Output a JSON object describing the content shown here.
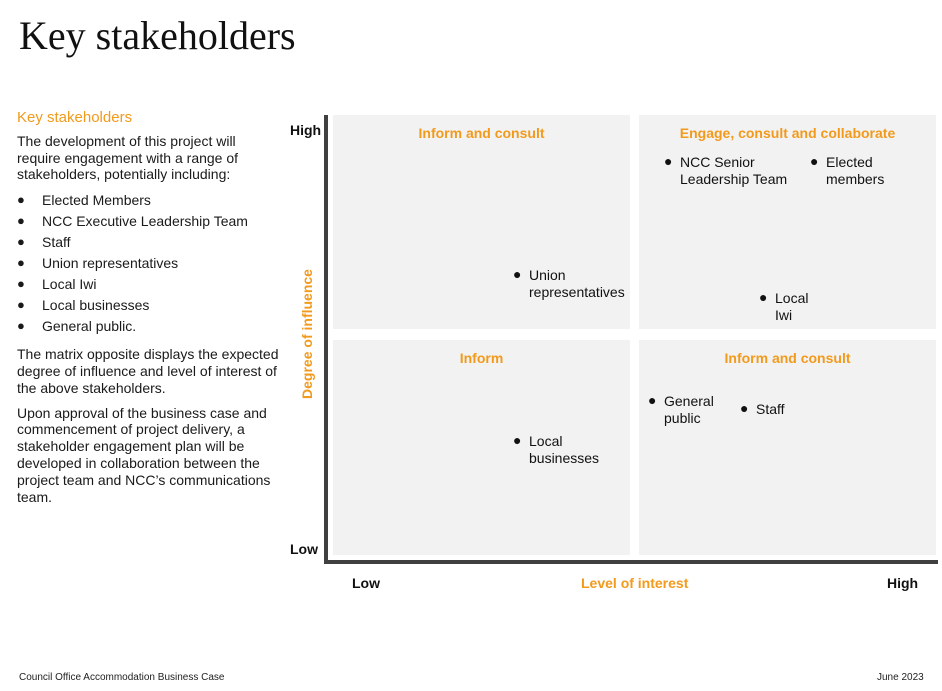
{
  "page": {
    "title": "Key stakeholders",
    "footer_left": "Council Office Accommodation Business Case",
    "footer_date": "June 2023"
  },
  "sidebar": {
    "heading": "Key stakeholders",
    "intro": "The development of this project will require engagement with a range of stakeholders, potentially including:",
    "bullet_glyph": "●",
    "items": [
      "Elected Members",
      "NCC Executive Leadership Team",
      "Staff",
      "Union representatives",
      "Local Iwi",
      "Local businesses",
      "General public."
    ],
    "para2": "The matrix opposite displays the expected degree of influence and level of interest of the above stakeholders.",
    "para3": "Upon approval of the business case and commencement of project delivery, a stakeholder engagement plan will be developed in collaboration between the project team and NCC’s communications team."
  },
  "matrix": {
    "y_axis_title": "Degree of influence",
    "x_axis_title": "Level of interest",
    "y_high": "High",
    "y_low": "Low",
    "x_low": "Low",
    "x_high": "High",
    "quadrants": {
      "top_left": "Inform and consult",
      "top_right": "Engage, consult and collaborate",
      "bottom_left": "Inform",
      "bottom_right": "Inform and consult"
    },
    "stakeholders": {
      "ncc_senior": [
        "NCC Senior",
        "Leadership Team"
      ],
      "elected": [
        "Elected",
        "members"
      ],
      "union": [
        "Union",
        "representatives"
      ],
      "iwi": [
        "Local",
        "Iwi"
      ],
      "general": [
        "General",
        "public"
      ],
      "staff": [
        "Staff"
      ],
      "businesses": [
        "Local",
        "businesses"
      ]
    }
  }
}
